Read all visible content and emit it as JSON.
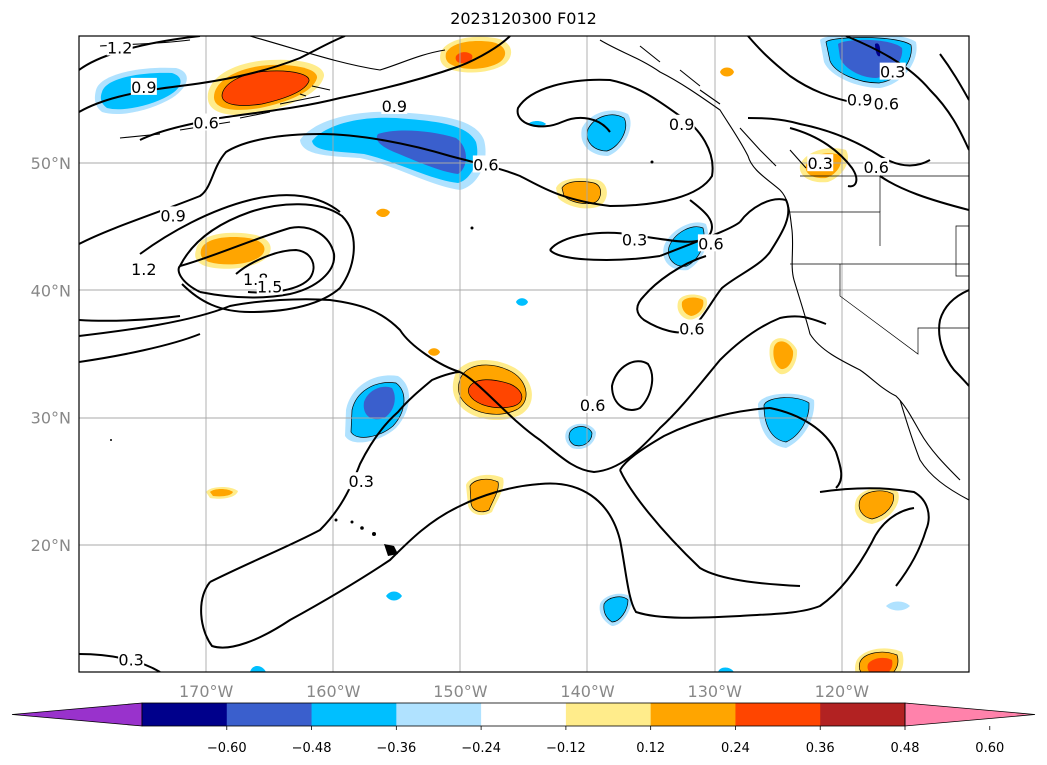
{
  "title": "2023120300 F012",
  "map": {
    "projection": "PlateCarree",
    "lon_range": [
      -180,
      -110
    ],
    "lat_range": [
      10,
      60
    ],
    "grid": true,
    "lat_labels": [
      {
        "lat": 50,
        "label": "50°N"
      },
      {
        "lat": 40,
        "label": "40°N"
      },
      {
        "lat": 30,
        "label": "30°N"
      },
      {
        "lat": 20,
        "label": "20°N"
      }
    ],
    "lon_labels": [
      {
        "lon": -170,
        "label": "170°W"
      },
      {
        "lon": -160,
        "label": "160°W"
      },
      {
        "lon": -150,
        "label": "150°W"
      },
      {
        "lon": -140,
        "label": "140°W"
      },
      {
        "lon": -130,
        "label": "130°W"
      },
      {
        "lon": -120,
        "label": "120°W"
      }
    ]
  },
  "contours": {
    "color": "#000000",
    "labels": [
      {
        "text": "1.2",
        "lon": -176.8,
        "lat": 59.1
      },
      {
        "text": "0.9",
        "lon": -174.9,
        "lat": 56.0
      },
      {
        "text": "0.6",
        "lon": -170.0,
        "lat": 53.2
      },
      {
        "text": "0.9",
        "lon": -155.2,
        "lat": 54.5
      },
      {
        "text": "0.6",
        "lon": -148.0,
        "lat": 49.9
      },
      {
        "text": "0.9",
        "lon": -132.6,
        "lat": 53.1
      },
      {
        "text": "0.3",
        "lon": -116.0,
        "lat": 57.2
      },
      {
        "text": "0.9",
        "lon": -118.6,
        "lat": 55.0
      },
      {
        "text": "0.6",
        "lon": -116.5,
        "lat": 54.7
      },
      {
        "text": "0.6",
        "lon": -117.3,
        "lat": 49.7
      },
      {
        "text": "0.3",
        "lon": -121.7,
        "lat": 50.0
      },
      {
        "text": "0.9",
        "lon": -172.6,
        "lat": 45.9
      },
      {
        "text": "1.2",
        "lon": -174.9,
        "lat": 41.7
      },
      {
        "text": "1.8",
        "lon": -166.1,
        "lat": 40.9
      },
      {
        "text": "1.5",
        "lon": -165.0,
        "lat": 40.3
      },
      {
        "text": "0.3",
        "lon": -136.3,
        "lat": 44.0
      },
      {
        "text": "0.6",
        "lon": -130.3,
        "lat": 43.7
      },
      {
        "text": "0.6",
        "lon": -131.8,
        "lat": 37.0
      },
      {
        "text": "0.6",
        "lon": -139.6,
        "lat": 31.0
      },
      {
        "text": "0.3",
        "lon": -157.8,
        "lat": 25.0
      },
      {
        "text": "0.3",
        "lon": -175.9,
        "lat": 11.0
      }
    ]
  },
  "colorbar": {
    "colors": [
      "#9932CC",
      "#00008B",
      "#3A5FCD",
      "#00BFFF",
      "#B0E2FF",
      "#FFFFFF",
      "#FFEC8B",
      "#FFA500",
      "#FF4500",
      "#B22222",
      "#FF82AB"
    ],
    "ticks": [
      "−0.60",
      "−0.48",
      "−0.36",
      "−0.24",
      "−0.12",
      "0.12",
      "0.24",
      "0.36",
      "0.48",
      "0.60"
    ]
  }
}
